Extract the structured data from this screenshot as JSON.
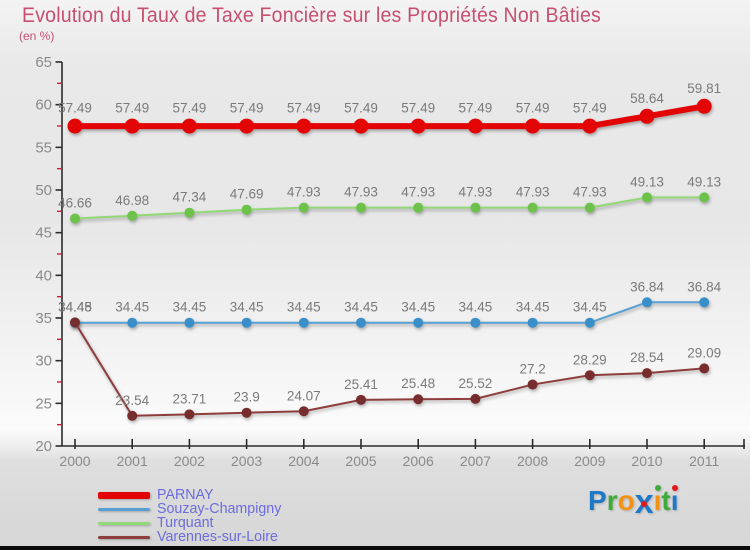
{
  "theme": {
    "title_color": "#c84f70",
    "axis_color": "#2b2b2b",
    "minor_tick_color": "#cc1f1f",
    "tick_label_color": "#8a8a8a",
    "data_label_color": "#7a7a7a",
    "legend_text_color": "#6c6cdf",
    "bottom_bar_color": "#0a0a0a"
  },
  "chart_data": {
    "type": "line",
    "title": "Evolution du Taux de Taxe Foncière sur les Propriétés Non Bâties",
    "subtitle": "(en %)",
    "x": [
      2000,
      2001,
      2002,
      2003,
      2004,
      2005,
      2006,
      2007,
      2008,
      2009,
      2010,
      2011
    ],
    "ylim": [
      20,
      65
    ],
    "y_major_step": 5,
    "y_minor_step": 2.5,
    "grid": false,
    "legend_position": "bottom-left",
    "series": [
      {
        "name": "PARNAY",
        "color": "#e30505",
        "marker_color": "#e30505",
        "line_width": 6,
        "marker_radius": 7.5,
        "values": [
          57.49,
          57.49,
          57.49,
          57.49,
          57.49,
          57.49,
          57.49,
          57.49,
          57.49,
          57.49,
          58.64,
          59.81
        ]
      },
      {
        "name": "Souzay-Champigny",
        "color": "#56a0d3",
        "marker_color": "#3a8fc9",
        "line_width": 2,
        "marker_radius": 5,
        "values": [
          34.45,
          34.45,
          34.45,
          34.45,
          34.45,
          34.45,
          34.45,
          34.45,
          34.45,
          34.45,
          36.84,
          36.84
        ]
      },
      {
        "name": "Turquant",
        "color": "#93d876",
        "marker_color": "#6cc24a",
        "line_width": 2,
        "marker_radius": 5,
        "values": [
          46.66,
          46.98,
          47.34,
          47.69,
          47.93,
          47.93,
          47.93,
          47.93,
          47.93,
          47.93,
          49.13,
          49.13
        ]
      },
      {
        "name": "Varennes-sur-Loire",
        "color": "#8e3d3d",
        "marker_color": "#772d2d",
        "line_width": 2,
        "marker_radius": 5,
        "values": [
          34.48,
          23.54,
          23.71,
          23.9,
          24.07,
          25.41,
          25.48,
          25.52,
          27.2,
          28.29,
          28.54,
          29.09
        ]
      }
    ]
  },
  "logo": {
    "letters": [
      {
        "ch": "P",
        "color": "#1e78c8"
      },
      {
        "ch": "r",
        "color": "#3faa3c"
      },
      {
        "ch": "o",
        "color": "#f39315"
      },
      {
        "ch": "x",
        "color": "#1e78c8",
        "big": true,
        "dot": "#e31919",
        "dot_pos": "center"
      },
      {
        "ch": "ı",
        "color": "#f39315",
        "dot": "#3faa3c",
        "dot_pos": "top"
      },
      {
        "ch": "t",
        "color": "#3faa3c"
      },
      {
        "ch": "ı",
        "color": "#1e78c8",
        "dot": "#e31919",
        "dot_pos": "top"
      }
    ]
  }
}
